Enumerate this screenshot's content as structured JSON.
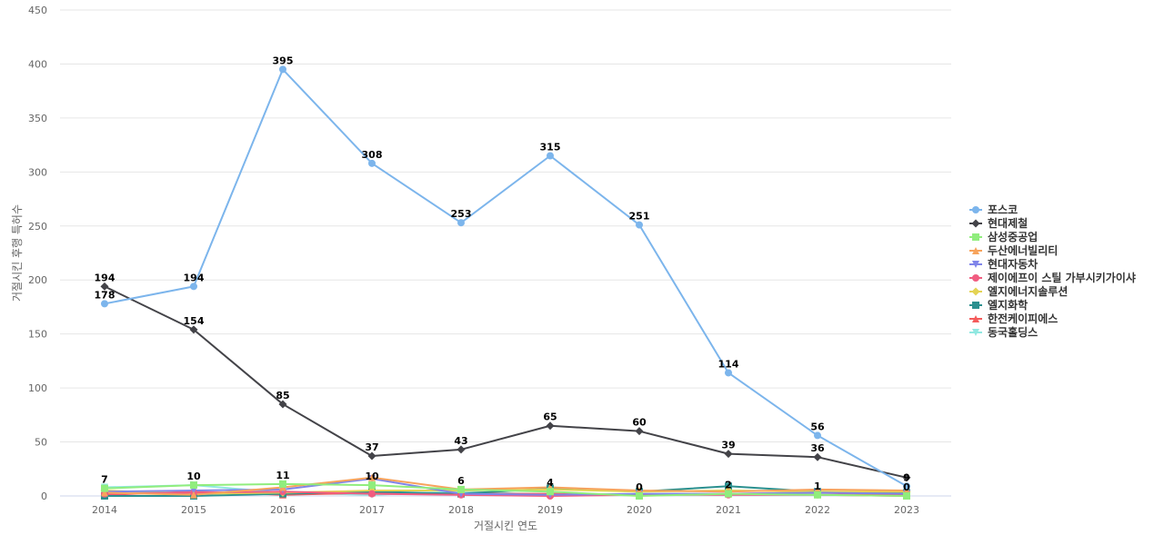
{
  "chart_data": {
    "type": "line",
    "title": "",
    "xlabel": "거절시킨 연도",
    "ylabel": "거절시킨 후행 특허수",
    "ylim": [
      0,
      450
    ],
    "yticks": [
      0,
      50,
      100,
      150,
      200,
      250,
      300,
      350,
      400,
      450
    ],
    "x": [
      "2014",
      "2015",
      "2016",
      "2017",
      "2018",
      "2019",
      "2020",
      "2021",
      "2022",
      "2023"
    ],
    "grid": true,
    "legend_position": "right",
    "series": [
      {
        "name": "포스코",
        "color": "#7cb5ec",
        "marker": "circle",
        "values": [
          178,
          194,
          395,
          308,
          253,
          315,
          251,
          114,
          56,
          9
        ],
        "labels": [
          "178",
          "194",
          "395",
          "308",
          "253",
          "315",
          "251",
          "114",
          "56",
          "9"
        ]
      },
      {
        "name": "현대제철",
        "color": "#434348",
        "marker": "diamond",
        "values": [
          194,
          154,
          85,
          37,
          43,
          65,
          60,
          39,
          36,
          17
        ],
        "labels": [
          "194",
          "154",
          "85",
          "37",
          "43",
          "65",
          "60",
          "39",
          "36",
          ""
        ]
      },
      {
        "name": "삼성중공업",
        "color": "#90ed7d",
        "marker": "square",
        "values": [
          7,
          10,
          11,
          10,
          6,
          4,
          0,
          2,
          1,
          0
        ],
        "labels": [
          "7",
          "10",
          "11",
          "10",
          "6",
          "4",
          "0",
          "2",
          "1",
          "0"
        ]
      },
      {
        "name": "두산에너빌리티",
        "color": "#f7a35c",
        "marker": "triangle",
        "values": [
          3,
          1,
          8,
          17,
          6,
          8,
          5,
          4,
          6,
          5
        ],
        "labels": [
          "",
          "",
          "",
          "",
          "",
          "",
          "",
          "",
          "",
          ""
        ]
      },
      {
        "name": "현대자동차",
        "color": "#8085e9",
        "marker": "triangle-down",
        "values": [
          4,
          5,
          6,
          16,
          2,
          1,
          2,
          2,
          3,
          2
        ],
        "labels": [
          "",
          "",
          "",
          "",
          "",
          "",
          "",
          "",
          "",
          ""
        ]
      },
      {
        "name": "제이에프이 스틸 가부시키가이샤",
        "color": "#f15c80",
        "marker": "circle",
        "values": [
          2,
          3,
          4,
          2,
          1,
          0,
          1,
          1,
          1,
          0
        ],
        "labels": [
          "",
          "",
          "",
          "",
          "",
          "",
          "",
          "",
          "",
          ""
        ]
      },
      {
        "name": "엘지에너지솔루션",
        "color": "#e4d354",
        "marker": "diamond",
        "values": [
          5,
          2,
          3,
          5,
          5,
          6,
          4,
          5,
          4,
          4
        ],
        "labels": [
          "",
          "",
          "",
          "",
          "",
          "",
          "",
          "",
          "",
          ""
        ]
      },
      {
        "name": "엘지화학",
        "color": "#2b908f",
        "marker": "square",
        "values": [
          0,
          0,
          2,
          4,
          2,
          7,
          4,
          9,
          4,
          3
        ],
        "labels": [
          "",
          "",
          "",
          "",
          "",
          "",
          "",
          "",
          "",
          ""
        ]
      },
      {
        "name": "한전케이피에스",
        "color": "#f45b5b",
        "marker": "triangle",
        "values": [
          1,
          4,
          1,
          3,
          2,
          2,
          1,
          2,
          3,
          1
        ],
        "labels": [
          "",
          "",
          "",
          "",
          "",
          "",
          "",
          "",
          "",
          ""
        ]
      },
      {
        "name": "동국홀딩스",
        "color": "#91e8e1",
        "marker": "triangle-down",
        "values": [
          8,
          10,
          3,
          1,
          4,
          1,
          1,
          1,
          1,
          1
        ],
        "labels": [
          "",
          "",
          "",
          "",
          "",
          "",
          "",
          "",
          "",
          ""
        ]
      }
    ]
  }
}
